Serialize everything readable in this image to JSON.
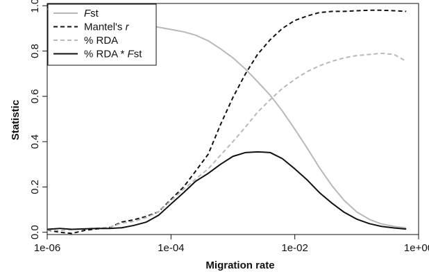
{
  "chart_data": {
    "type": "line",
    "xlabel": "Migration rate",
    "ylabel": "Statistic",
    "x_scale": "log10",
    "xlim": [
      1e-06,
      1
    ],
    "ylim": [
      -0.01,
      1.01
    ],
    "x_ticks": [
      1e-06,
      0.0001,
      0.01,
      1
    ],
    "x_tick_labels": [
      "1e-06",
      "1e-04",
      "1e-02",
      "1e+00"
    ],
    "y_ticks": [
      0.0,
      0.2,
      0.4,
      0.6,
      0.8,
      1.0
    ],
    "y_tick_labels": [
      "0.0",
      "0.2",
      "0.4",
      "0.6",
      "0.8",
      "1.0"
    ],
    "grid": false,
    "legend_position": "top-left",
    "x": [
      1e-06,
      1.6e-06,
      2.5e-06,
      4e-06,
      6.3e-06,
      1e-05,
      1.6e-05,
      2.5e-05,
      4e-05,
      6.3e-05,
      0.0001,
      0.00016,
      0.00025,
      0.0004,
      0.00063,
      0.001,
      0.0016,
      0.0025,
      0.004,
      0.0063,
      0.01,
      0.016,
      0.025,
      0.04,
      0.063,
      0.1,
      0.16,
      0.25,
      0.4,
      0.63
    ],
    "series": [
      {
        "name": "Fst",
        "name_parts": [
          {
            "text": "F",
            "italic": true
          },
          {
            "text": "st",
            "italic": false
          }
        ],
        "color": "#b8b8b8",
        "dash": "solid",
        "values": [
          0.985,
          0.98,
          0.975,
          0.965,
          0.955,
          0.945,
          0.935,
          0.925,
          0.915,
          0.905,
          0.895,
          0.885,
          0.87,
          0.845,
          0.81,
          0.77,
          0.72,
          0.665,
          0.605,
          0.535,
          0.455,
          0.37,
          0.285,
          0.205,
          0.14,
          0.09,
          0.057,
          0.037,
          0.026,
          0.019
        ]
      },
      {
        "name": "Mantel's r",
        "name_parts": [
          {
            "text": "Mantel's ",
            "italic": false
          },
          {
            "text": "r",
            "italic": true
          }
        ],
        "color": "#111111",
        "dash": "dashed",
        "values": [
          0.01,
          0.0,
          -0.005,
          0.008,
          0.015,
          0.02,
          0.045,
          0.055,
          0.07,
          0.09,
          0.145,
          0.2,
          0.27,
          0.345,
          0.475,
          0.595,
          0.7,
          0.785,
          0.85,
          0.9,
          0.935,
          0.955,
          0.97,
          0.975,
          0.975,
          0.978,
          0.98,
          0.98,
          0.978,
          0.975
        ]
      },
      {
        "name": "% RDA",
        "name_parts": [
          {
            "text": "% RDA",
            "italic": false
          }
        ],
        "color": "#b8b8b8",
        "dash": "dashed",
        "values": [
          0.01,
          0.008,
          0.012,
          0.015,
          0.018,
          0.022,
          0.04,
          0.048,
          0.065,
          0.09,
          0.14,
          0.19,
          0.235,
          0.28,
          0.34,
          0.4,
          0.465,
          0.53,
          0.585,
          0.635,
          0.675,
          0.71,
          0.735,
          0.755,
          0.77,
          0.78,
          0.785,
          0.79,
          0.785,
          0.755
        ]
      },
      {
        "name": "% RDA * Fst",
        "name_parts": [
          {
            "text": "% RDA * ",
            "italic": false
          },
          {
            "text": "F",
            "italic": true
          },
          {
            "text": "st",
            "italic": false
          }
        ],
        "color": "#111111",
        "dash": "solid",
        "values": [
          0.013,
          0.017,
          0.013,
          0.015,
          0.017,
          0.017,
          0.02,
          0.03,
          0.045,
          0.075,
          0.125,
          0.175,
          0.225,
          0.26,
          0.3,
          0.335,
          0.352,
          0.355,
          0.352,
          0.325,
          0.28,
          0.23,
          0.175,
          0.128,
          0.088,
          0.058,
          0.038,
          0.026,
          0.019,
          0.014
        ]
      }
    ]
  }
}
